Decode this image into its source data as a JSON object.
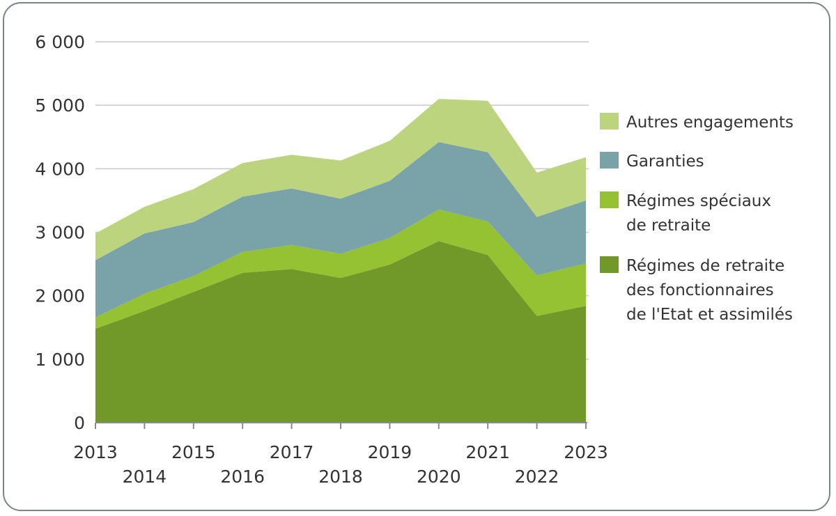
{
  "chart_data": {
    "type": "area",
    "stacked": true,
    "x": [
      2013,
      2014,
      2015,
      2016,
      2017,
      2018,
      2019,
      2020,
      2021,
      2022,
      2023
    ],
    "x_tick_labels": [
      "2013",
      "2014",
      "2015",
      "2016",
      "2017",
      "2018",
      "2019",
      "2020",
      "2021",
      "2022",
      "2023"
    ],
    "ylim": [
      0,
      6000
    ],
    "y_ticks": [
      0,
      1000,
      2000,
      3000,
      4000,
      5000,
      6000
    ],
    "y_tick_labels": [
      "0",
      "1 000",
      "2 000",
      "3 000",
      "4 000",
      "5 000",
      "6 000"
    ],
    "grid": true,
    "legend_position": "right",
    "series": [
      {
        "name": "Régimes de retraite des fonctionnaires de l'Etat et assimilés",
        "legend_lines": [
          "Régimes de retraite",
          "des fonctionnaires",
          "de l'Etat et assimilés"
        ],
        "color": "#70992a",
        "values": [
          1480,
          1760,
          2060,
          2360,
          2420,
          2280,
          2490,
          2860,
          2640,
          1680,
          1840
        ]
      },
      {
        "name": "Régimes spéciaux de retraite",
        "legend_lines": [
          "Régimes spéciaux",
          "de retraite"
        ],
        "color": "#95c232",
        "values": [
          180,
          270,
          250,
          330,
          380,
          380,
          420,
          500,
          530,
          640,
          670
        ]
      },
      {
        "name": "Garanties",
        "legend_lines": [
          "Garanties"
        ],
        "color": "#79a3a8",
        "values": [
          900,
          950,
          850,
          870,
          890,
          870,
          900,
          1060,
          1090,
          920,
          990
        ]
      },
      {
        "name": "Autres engagements",
        "legend_lines": [
          "Autres engagements"
        ],
        "color": "#bdd47f",
        "values": [
          420,
          420,
          520,
          530,
          530,
          600,
          630,
          680,
          810,
          700,
          680
        ]
      }
    ]
  }
}
